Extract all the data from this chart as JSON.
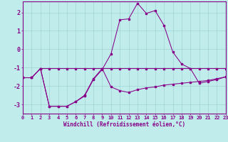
{
  "xlabel": "Windchill (Refroidissement éolien,°C)",
  "background_color": "#c0ecec",
  "grid_color": "#a0d4d4",
  "line_color": "#880088",
  "xlim": [
    0,
    23
  ],
  "ylim": [
    -3.5,
    2.6
  ],
  "xticks": [
    0,
    1,
    2,
    3,
    4,
    5,
    6,
    7,
    8,
    9,
    10,
    11,
    12,
    13,
    14,
    15,
    16,
    17,
    18,
    19,
    20,
    21,
    22,
    23
  ],
  "yticks": [
    -3,
    -2,
    -1,
    0,
    1,
    2
  ],
  "line1_x": [
    0,
    1,
    2,
    3,
    4,
    5,
    6,
    7,
    8,
    9,
    10,
    11,
    12,
    13,
    14,
    15,
    16,
    17,
    18,
    19,
    20,
    21,
    22,
    23
  ],
  "line1_y": [
    -1.55,
    -1.55,
    -1.05,
    -1.05,
    -1.05,
    -1.05,
    -1.05,
    -1.05,
    -1.05,
    -1.05,
    -1.05,
    -1.05,
    -1.05,
    -1.05,
    -1.05,
    -1.05,
    -1.05,
    -1.05,
    -1.05,
    -1.05,
    -1.05,
    -1.05,
    -1.05,
    -1.05
  ],
  "line2_x": [
    0,
    1,
    2,
    3,
    4,
    5,
    6,
    7,
    8,
    9,
    10,
    11,
    12,
    13,
    14,
    15,
    16,
    17,
    18,
    19,
    20,
    21,
    22,
    23
  ],
  "line2_y": [
    -1.55,
    -1.55,
    -1.05,
    -3.1,
    -3.1,
    -3.1,
    -2.85,
    -2.55,
    -1.65,
    -1.1,
    -0.25,
    1.6,
    1.65,
    2.5,
    1.95,
    2.1,
    1.3,
    -0.15,
    -0.8,
    -1.05,
    -1.85,
    -1.75,
    -1.65,
    -1.5
  ],
  "line3_x": [
    0,
    1,
    2,
    3,
    4,
    5,
    6,
    7,
    8,
    9,
    10,
    11,
    12,
    13,
    14,
    15,
    16,
    17,
    18,
    19,
    20,
    21,
    22,
    23
  ],
  "line3_y": [
    -1.55,
    -1.55,
    -1.05,
    -3.1,
    -3.1,
    -3.1,
    -2.85,
    -2.5,
    -1.6,
    -1.05,
    -2.05,
    -2.25,
    -2.35,
    -2.2,
    -2.1,
    -2.05,
    -1.95,
    -1.9,
    -1.85,
    -1.8,
    -1.75,
    -1.7,
    -1.6,
    -1.5
  ]
}
